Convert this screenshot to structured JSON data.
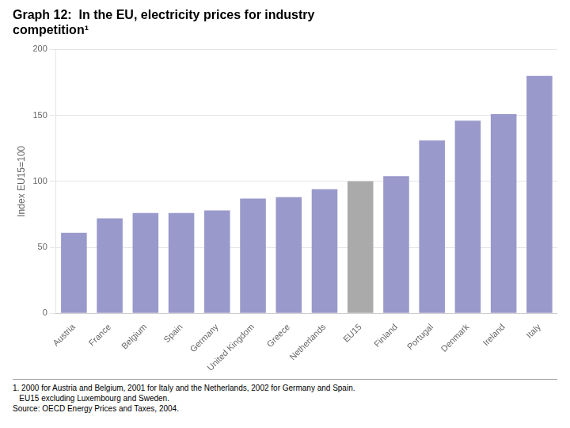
{
  "chart_data": {
    "type": "bar",
    "title": [
      "Graph 12:  In the EU, electricity prices for industry",
      "competition¹"
    ],
    "ylabel": "Index EU15=100",
    "categories": [
      "Austria",
      "France",
      "Belgium",
      "Spain",
      "Germany",
      "United Kingdom",
      "Greece",
      "Netherlands",
      "EU15",
      "Finland",
      "Portugal",
      "Denmark",
      "Ireland",
      "Italy"
    ],
    "values": [
      61,
      72,
      76,
      76,
      78,
      87,
      88,
      94,
      100,
      104,
      131,
      146,
      151,
      180
    ],
    "colors": [
      "#9999cc",
      "#9999cc",
      "#9999cc",
      "#9999cc",
      "#9999cc",
      "#9999cc",
      "#9999cc",
      "#9999cc",
      "#aaaaaa",
      "#9999cc",
      "#9999cc",
      "#9999cc",
      "#9999cc",
      "#9999cc"
    ],
    "ylim": [
      0,
      200
    ],
    "yticks": [
      0,
      50,
      100,
      150,
      200
    ],
    "grid": true,
    "annotations": [
      "1. 2000 for Austria and Belgium, 2001 for Italy and the Netherlands, 2002 for Germany and Spain.",
      "   EU15 excluding Luxembourg and Sweden.",
      "Source: OECD Energy Prices and Taxes, 2004."
    ]
  }
}
